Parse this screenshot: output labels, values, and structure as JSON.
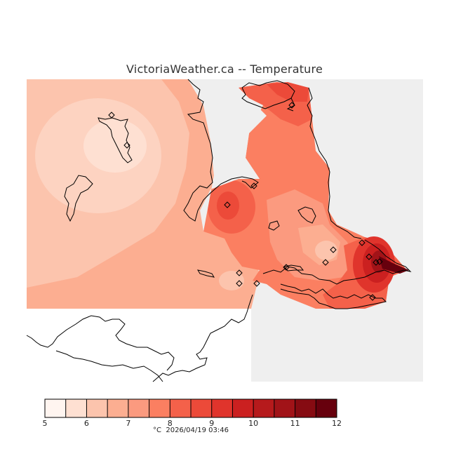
{
  "title": "VictoriaWeather.ca -- Temperature",
  "footer": {
    "unit": "°C",
    "timestamp": "2026/04/19 03:46"
  },
  "legend": {
    "tick_labels": [
      "5",
      "6",
      "7",
      "8",
      "9",
      "10",
      "11",
      "12"
    ],
    "colors": [
      "#fff5f0",
      "#fee0d2",
      "#fcc4ad",
      "#fcae91",
      "#fb9a7f",
      "#fb7f61",
      "#f4614a",
      "#ec4a39",
      "#e0342c",
      "#cb2020",
      "#b61a1c",
      "#a11318",
      "#860b12",
      "#67000d"
    ],
    "min": 5,
    "max": 12,
    "step": 0.5
  },
  "map": {
    "background_color": "#efefef",
    "no_data_color": "#ffffff",
    "coastline_color": "#000000",
    "station_marker": "diamond",
    "station_count": 16
  }
}
